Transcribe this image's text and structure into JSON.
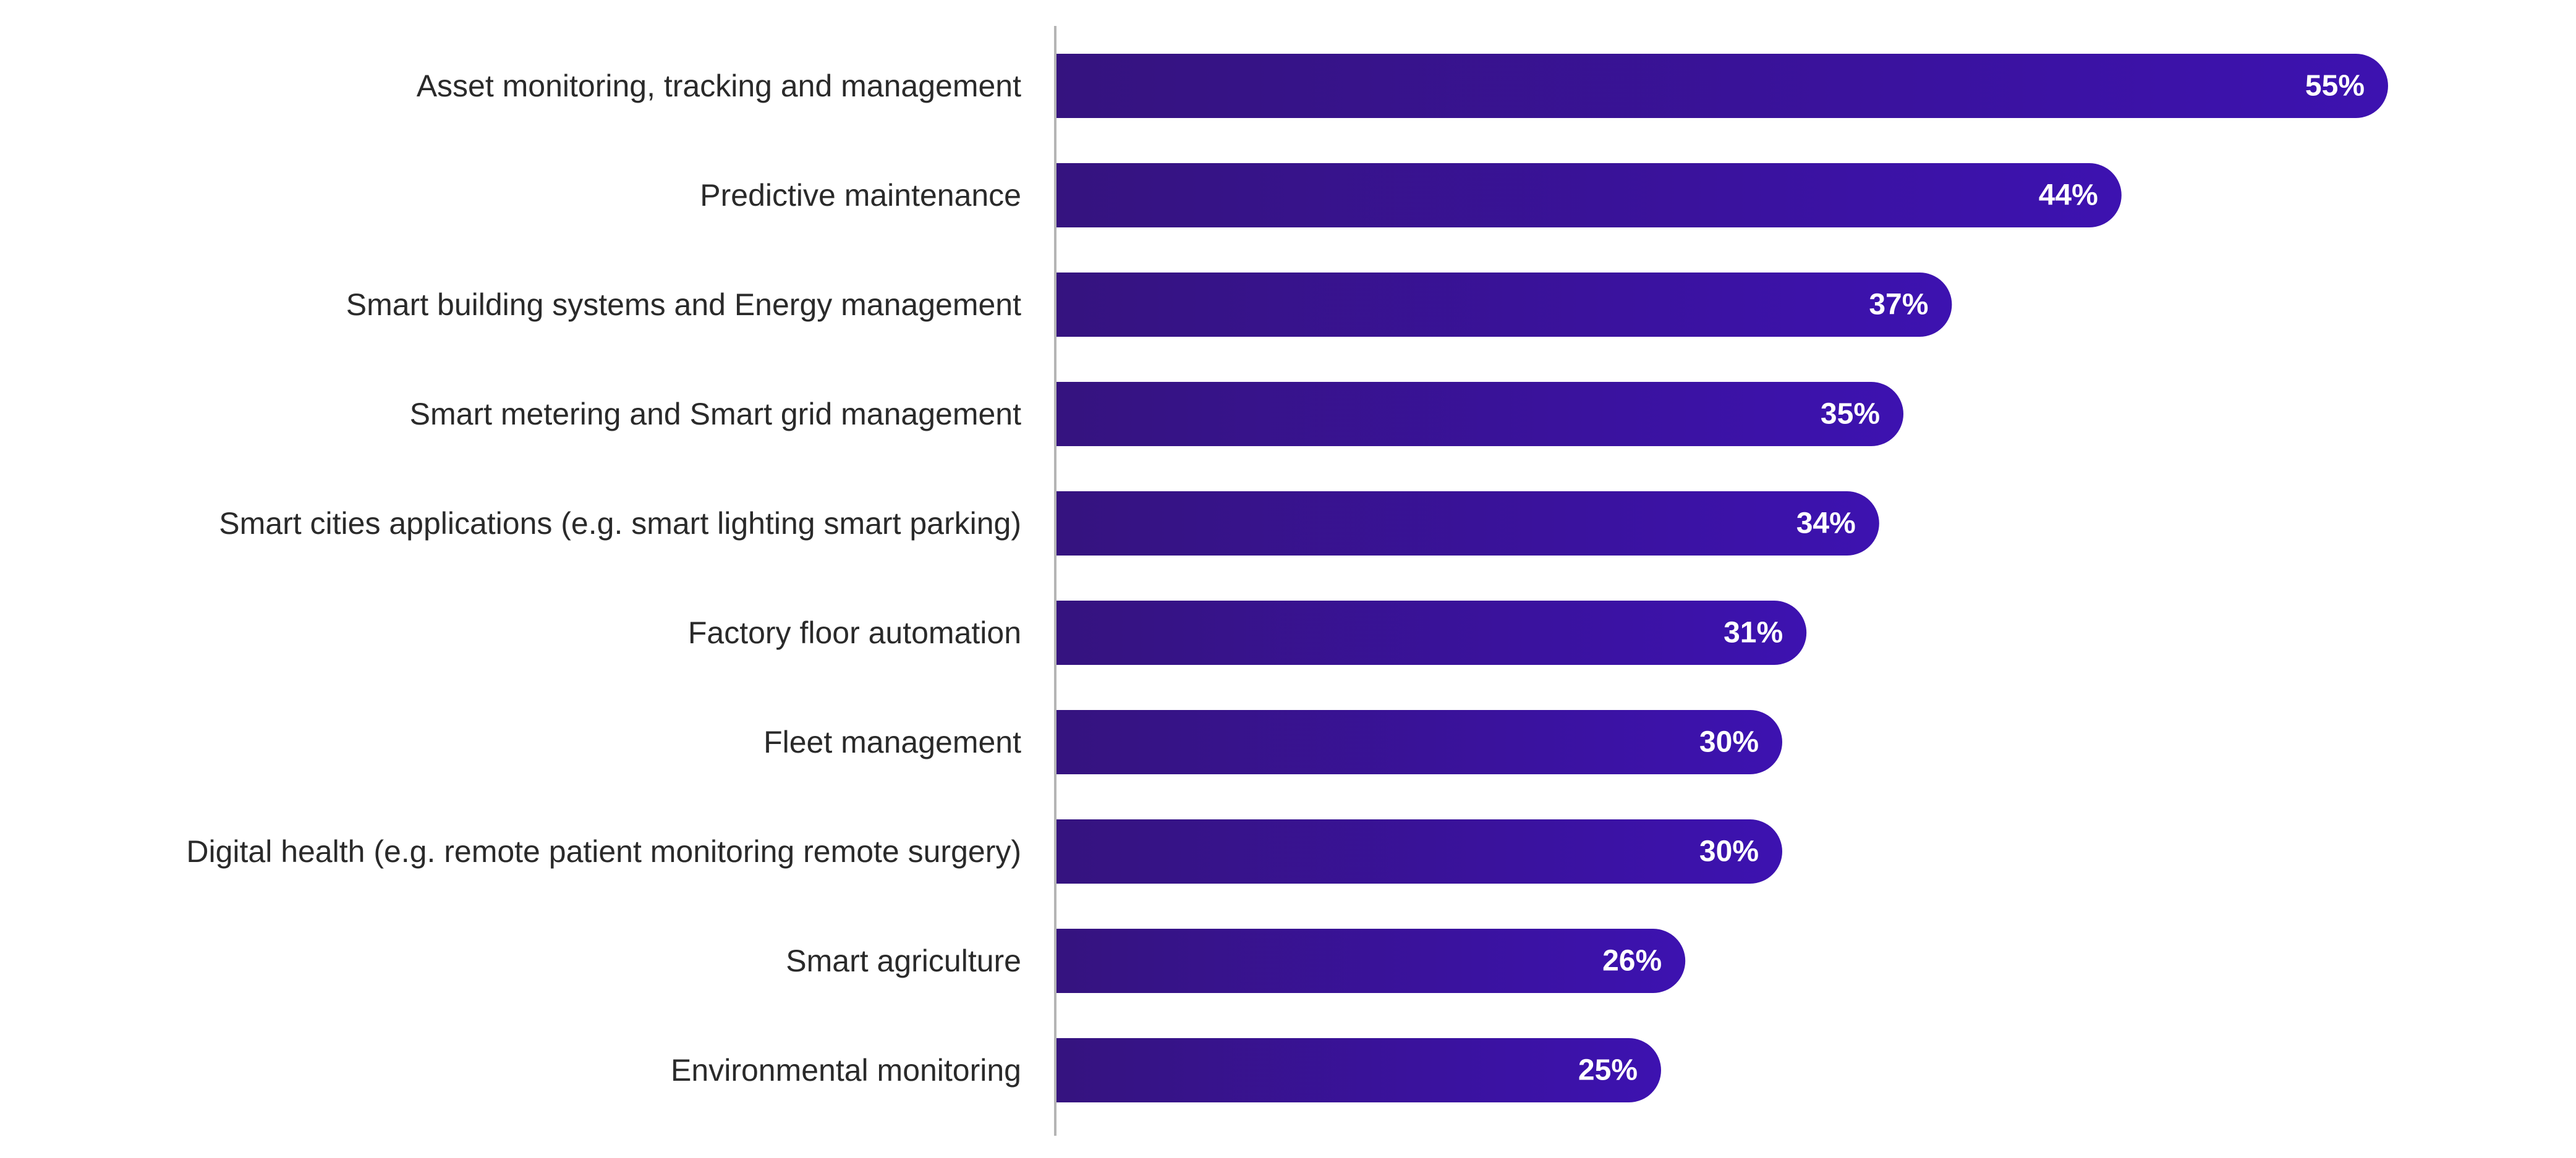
{
  "chart_data": {
    "type": "bar",
    "orientation": "horizontal",
    "categories": [
      "Asset monitoring, tracking and management",
      "Predictive maintenance",
      "Smart building systems and Energy management",
      "Smart metering and Smart grid management",
      "Smart cities applications (e.g. smart lighting smart parking)",
      "Factory floor automation",
      "Fleet management",
      "Digital health (e.g. remote patient monitoring remote surgery)",
      "Smart agriculture",
      "Environmental monitoring"
    ],
    "values": [
      55,
      44,
      37,
      35,
      34,
      31,
      30,
      30,
      26,
      25
    ],
    "value_labels": [
      "55%",
      "44%",
      "37%",
      "35%",
      "34%",
      "31%",
      "30%",
      "30%",
      "26%",
      "25%"
    ],
    "unit": "%",
    "xlim": [
      0,
      60
    ],
    "grid": false,
    "legend": "none",
    "colors": {
      "bar_start": "#35137f",
      "bar_end": "#3d12b0",
      "axis": "#b5b5b5",
      "label": "#2a2a2a",
      "value_label": "#ffffff"
    }
  }
}
